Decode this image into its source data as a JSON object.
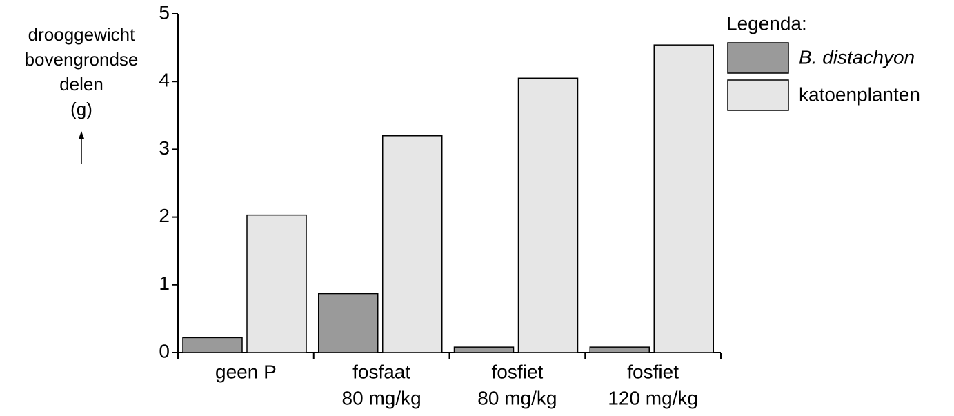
{
  "chart_data": {
    "type": "bar",
    "y_label": [
      "drooggewicht",
      "bovengrondse",
      "delen",
      "(g)"
    ],
    "categories": [
      [
        "geen P"
      ],
      [
        "fosfaat",
        "80 mg/kg"
      ],
      [
        "fosfiet",
        "80 mg/kg"
      ],
      [
        "fosfiet",
        "120 mg/kg"
      ]
    ],
    "series": [
      {
        "name": "B. distachyon",
        "color": "#9a9a9a",
        "values": [
          0.22,
          0.87,
          0.08,
          0.08
        ]
      },
      {
        "name": "katoenplanten",
        "color": "#e6e6e6",
        "values": [
          2.03,
          3.2,
          4.05,
          4.54
        ]
      }
    ],
    "ylim": [
      0,
      5
    ],
    "yticks": [
      0,
      1,
      2,
      3,
      4,
      5
    ],
    "legend_title": "Legenda:"
  }
}
